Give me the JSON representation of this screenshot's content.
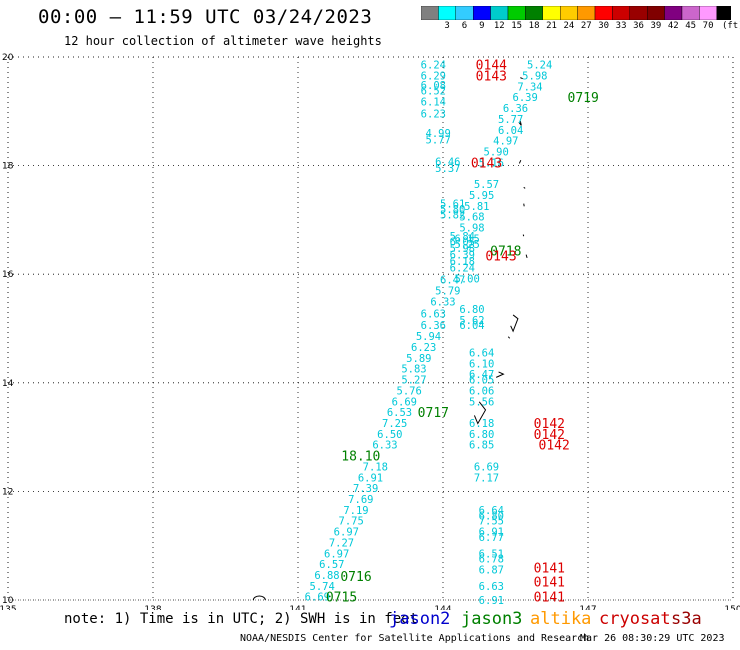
{
  "header": {
    "title": "00:00 – 11:59 UTC 03/24/2023",
    "subtitle": "12 hour collection of altimeter wave heights"
  },
  "scale": {
    "colors": [
      "#808080",
      "#00ffff",
      "#33ccff",
      "#0000ff",
      "#00cccc",
      "#00cc00",
      "#008000",
      "#ffff00",
      "#ffcc00",
      "#ff9900",
      "#ff0000",
      "#cc0000",
      "#990000",
      "#800000",
      "#800080",
      "#cc66cc",
      "#ff99ff",
      "#000000"
    ],
    "labels": [
      "3",
      "6",
      "9",
      "12",
      "15",
      "18",
      "21",
      "24",
      "27",
      "30",
      "33",
      "36",
      "39",
      "42",
      "45",
      "70"
    ],
    "unit": "(ft)"
  },
  "footer": {
    "note": "note: 1) Time is in UTC; 2) SWH is in feet",
    "credit": "NOAA/NESDIS Center for Satellite Applications and Research",
    "timestamp": "Mar 26 08:30:29 UTC 2023"
  },
  "legend": [
    {
      "name": "jason2",
      "color": "#0000cc"
    },
    {
      "name": "jason3",
      "color": "#008000"
    },
    {
      "name": "altika",
      "color": "#ff9900"
    },
    {
      "name": "cryosat",
      "color": "#cc0000"
    },
    {
      "name": "s3a",
      "color": "#990000"
    }
  ],
  "chart_data": {
    "type": "scatter",
    "xlim": [
      135,
      150
    ],
    "ylim": [
      10,
      20
    ],
    "x_ticks": [
      "135",
      "138",
      "141",
      "144",
      "147",
      "150"
    ],
    "y_ticks": [
      "10",
      "12",
      "14",
      "16",
      "18",
      "20"
    ],
    "grid": true,
    "swh_color": "#00c8d8",
    "track_a": [
      {
        "x": 143.8,
        "y": 19.86,
        "v": "6.24"
      },
      {
        "x": 143.8,
        "y": 19.66,
        "v": "6.29"
      },
      {
        "x": 143.8,
        "y": 19.48,
        "v": "6.08"
      },
      {
        "x": 143.8,
        "y": 19.38,
        "v": "6.52"
      },
      {
        "x": 143.8,
        "y": 19.18,
        "v": "6.14"
      },
      {
        "x": 143.8,
        "y": 18.96,
        "v": "6.23"
      },
      {
        "x": 143.9,
        "y": 18.6,
        "v": "4.99"
      },
      {
        "x": 143.9,
        "y": 18.48,
        "v": "5.77"
      },
      {
        "x": 144.1,
        "y": 18.08,
        "v": "6.46"
      },
      {
        "x": 144.1,
        "y": 17.96,
        "v": "5.37"
      },
      {
        "x": 144.2,
        "y": 17.3,
        "v": "5.61"
      },
      {
        "x": 144.2,
        "y": 17.2,
        "v": "5.80"
      },
      {
        "x": 144.2,
        "y": 17.1,
        "v": "5.82"
      },
      {
        "x": 144.4,
        "y": 16.7,
        "v": "5.84"
      },
      {
        "x": 144.4,
        "y": 16.6,
        "v": "6.05"
      },
      {
        "x": 144.4,
        "y": 16.48,
        "v": "5.98"
      },
      {
        "x": 144.4,
        "y": 16.36,
        "v": "6.39"
      },
      {
        "x": 144.4,
        "y": 16.24,
        "v": "6.18"
      },
      {
        "x": 144.4,
        "y": 16.12,
        "v": "6.24"
      },
      {
        "x": 144.2,
        "y": 15.9,
        "v": "6.47"
      },
      {
        "x": 144.1,
        "y": 15.7,
        "v": "5.79"
      },
      {
        "x": 144.0,
        "y": 15.5,
        "v": "6.33"
      },
      {
        "x": 143.8,
        "y": 15.28,
        "v": "6.63"
      },
      {
        "x": 143.8,
        "y": 15.06,
        "v": "6.36"
      },
      {
        "x": 143.7,
        "y": 14.86,
        "v": "5.94"
      },
      {
        "x": 143.6,
        "y": 14.66,
        "v": "6.23"
      },
      {
        "x": 143.5,
        "y": 14.46,
        "v": "5.89"
      },
      {
        "x": 143.4,
        "y": 14.26,
        "v": "5.83"
      },
      {
        "x": 143.4,
        "y": 14.06,
        "v": "5.27"
      },
      {
        "x": 143.3,
        "y": 13.86,
        "v": "5.76"
      },
      {
        "x": 143.2,
        "y": 13.66,
        "v": "6.69"
      },
      {
        "x": 143.1,
        "y": 13.46,
        "v": "6.53"
      },
      {
        "x": 143.0,
        "y": 13.26,
        "v": "7.25"
      },
      {
        "x": 142.9,
        "y": 13.06,
        "v": "6.50"
      },
      {
        "x": 142.8,
        "y": 12.86,
        "v": "6.33"
      },
      {
        "x": 142.6,
        "y": 12.46,
        "v": "7.18"
      },
      {
        "x": 142.5,
        "y": 12.26,
        "v": "6.91"
      },
      {
        "x": 142.4,
        "y": 12.06,
        "v": "7.39"
      },
      {
        "x": 142.3,
        "y": 11.86,
        "v": "7.69"
      },
      {
        "x": 142.2,
        "y": 11.66,
        "v": "7.19"
      },
      {
        "x": 142.1,
        "y": 11.46,
        "v": "7.75"
      },
      {
        "x": 142.0,
        "y": 11.26,
        "v": "6.97"
      },
      {
        "x": 141.9,
        "y": 11.06,
        "v": "7.27"
      },
      {
        "x": 141.8,
        "y": 10.86,
        "v": "6.97"
      },
      {
        "x": 141.7,
        "y": 10.66,
        "v": "6.57"
      },
      {
        "x": 141.6,
        "y": 10.46,
        "v": "6.88"
      },
      {
        "x": 141.5,
        "y": 10.26,
        "v": "5.74"
      },
      {
        "x": 141.4,
        "y": 10.06,
        "v": "6.69"
      }
    ],
    "track_b": [
      {
        "x": 146.0,
        "y": 19.86,
        "v": "5.24"
      },
      {
        "x": 145.9,
        "y": 19.66,
        "v": "5.98"
      },
      {
        "x": 145.8,
        "y": 19.46,
        "v": "7.34"
      },
      {
        "x": 145.7,
        "y": 19.26,
        "v": "6.39"
      },
      {
        "x": 145.5,
        "y": 19.06,
        "v": "6.36"
      },
      {
        "x": 145.4,
        "y": 18.86,
        "v": "5.77"
      },
      {
        "x": 145.4,
        "y": 18.66,
        "v": "6.04"
      },
      {
        "x": 145.3,
        "y": 18.46,
        "v": "4.97"
      },
      {
        "x": 145.1,
        "y": 18.26,
        "v": "5.90"
      },
      {
        "x": 145.0,
        "y": 18.06,
        "v": "5.16"
      },
      {
        "x": 144.9,
        "y": 17.66,
        "v": "5.57"
      },
      {
        "x": 144.8,
        "y": 17.46,
        "v": "5.95"
      },
      {
        "x": 144.7,
        "y": 17.26,
        "v": "5.81"
      },
      {
        "x": 144.6,
        "y": 17.06,
        "v": "5.68"
      },
      {
        "x": 144.6,
        "y": 16.86,
        "v": "5.98"
      },
      {
        "x": 144.5,
        "y": 16.66,
        "v": "6.15"
      },
      {
        "x": 144.5,
        "y": 16.56,
        "v": "5.25"
      },
      {
        "x": 144.5,
        "y": 15.92,
        "v": "5.00"
      },
      {
        "x": 144.6,
        "y": 15.36,
        "v": "6.80"
      },
      {
        "x": 144.6,
        "y": 15.16,
        "v": "5.62"
      },
      {
        "x": 144.6,
        "y": 15.06,
        "v": "6.04"
      },
      {
        "x": 144.8,
        "y": 14.56,
        "v": "6.64"
      },
      {
        "x": 144.8,
        "y": 14.36,
        "v": "6.10"
      },
      {
        "x": 144.8,
        "y": 14.16,
        "v": "6.47"
      },
      {
        "x": 144.8,
        "y": 14.06,
        "v": "6.05"
      },
      {
        "x": 144.8,
        "y": 13.86,
        "v": "6.06"
      },
      {
        "x": 144.8,
        "y": 13.66,
        "v": "5.56"
      },
      {
        "x": 144.8,
        "y": 13.26,
        "v": "6.18"
      },
      {
        "x": 144.8,
        "y": 13.06,
        "v": "6.80"
      },
      {
        "x": 144.8,
        "y": 12.86,
        "v": "6.85"
      },
      {
        "x": 144.9,
        "y": 12.46,
        "v": "6.69"
      },
      {
        "x": 144.9,
        "y": 12.26,
        "v": "7.17"
      },
      {
        "x": 145.0,
        "y": 11.66,
        "v": "6.64"
      },
      {
        "x": 145.0,
        "y": 11.56,
        "v": "6.80"
      },
      {
        "x": 145.0,
        "y": 11.46,
        "v": "7.55"
      },
      {
        "x": 145.0,
        "y": 11.26,
        "v": "6.91"
      },
      {
        "x": 145.0,
        "y": 11.16,
        "v": "6.77"
      },
      {
        "x": 145.0,
        "y": 10.86,
        "v": "6.51"
      },
      {
        "x": 145.0,
        "y": 10.76,
        "v": "6.78"
      },
      {
        "x": 145.0,
        "y": 10.56,
        "v": "6.87"
      },
      {
        "x": 145.0,
        "y": 10.26,
        "v": "6.63"
      },
      {
        "x": 145.0,
        "y": 10.0,
        "v": "6.91"
      }
    ],
    "time_labels": [
      {
        "x": 145.0,
        "y": 19.86,
        "t": "0144",
        "sat": "cryosat"
      },
      {
        "x": 145.0,
        "y": 19.66,
        "t": "0143",
        "sat": "cryosat"
      },
      {
        "x": 146.9,
        "y": 19.26,
        "t": "0719",
        "sat": "jason3"
      },
      {
        "x": 144.9,
        "y": 18.06,
        "t": "0143",
        "sat": "cryosat"
      },
      {
        "x": 145.3,
        "y": 16.44,
        "t": "0718",
        "sat": "jason3"
      },
      {
        "x": 145.2,
        "y": 16.34,
        "t": "0143",
        "sat": "cryosat"
      },
      {
        "x": 143.8,
        "y": 13.46,
        "t": "0717",
        "sat": "jason3"
      },
      {
        "x": 146.2,
        "y": 13.26,
        "t": "0142",
        "sat": "cryosat"
      },
      {
        "x": 146.2,
        "y": 13.06,
        "t": "0142",
        "sat": "cryosat"
      },
      {
        "x": 146.3,
        "y": 12.86,
        "t": "0142",
        "sat": "cryosat"
      },
      {
        "x": 142.3,
        "y": 12.66,
        "t": "18.10",
        "sat": "jason3"
      },
      {
        "x": 146.2,
        "y": 10.6,
        "t": "0141",
        "sat": "cryosat"
      },
      {
        "x": 146.2,
        "y": 10.34,
        "t": "0141",
        "sat": "cryosat"
      },
      {
        "x": 146.2,
        "y": 10.06,
        "t": "0141",
        "sat": "cryosat"
      },
      {
        "x": 142.2,
        "y": 10.44,
        "t": "0716",
        "sat": "jason3"
      },
      {
        "x": 141.9,
        "y": 10.06,
        "t": "0715",
        "sat": "jason3"
      }
    ]
  }
}
